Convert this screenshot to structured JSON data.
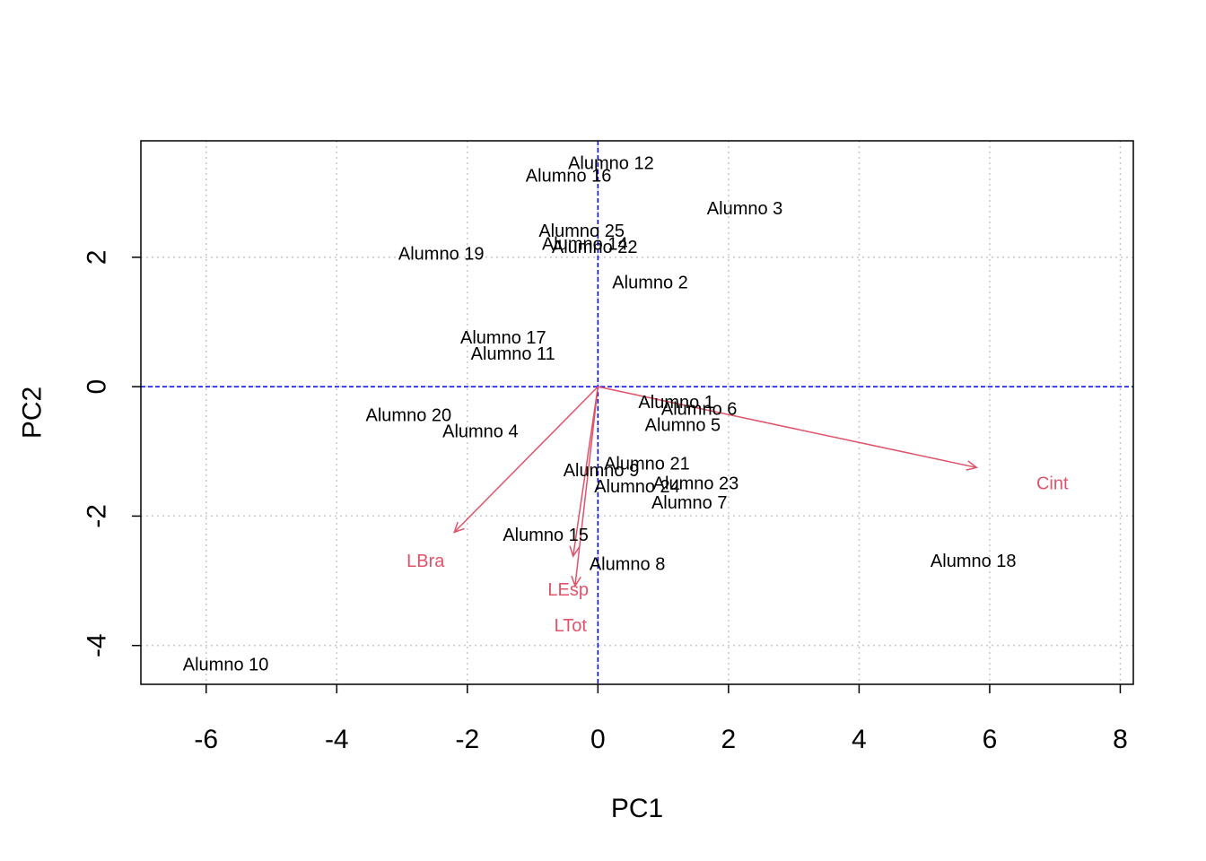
{
  "chart_data": {
    "type": "scatter",
    "subtype": "biplot",
    "title": "",
    "xlabel": "PC1",
    "ylabel": "PC2",
    "xlim": [
      -7,
      8.2
    ],
    "ylim": [
      -4.6,
      3.8
    ],
    "xticks": [
      -6,
      -4,
      -2,
      0,
      2,
      4,
      6,
      8
    ],
    "yticks": [
      -4,
      -2,
      0,
      2
    ],
    "grid": true,
    "reference_lines": {
      "x": 0,
      "y": 0,
      "color": "#0000FF",
      "style": "dashed"
    },
    "points": [
      {
        "label": "Alumno 12",
        "x": 0.2,
        "y": 3.45
      },
      {
        "label": "Alumno 16",
        "x": -0.45,
        "y": 3.25
      },
      {
        "label": "Alumno 3",
        "x": 2.25,
        "y": 2.75
      },
      {
        "label": "Alumno 25",
        "x": -0.25,
        "y": 2.4
      },
      {
        "label": "Alumno 14",
        "x": -0.2,
        "y": 2.2
      },
      {
        "label": "Alumno 22",
        "x": -0.05,
        "y": 2.15
      },
      {
        "label": "Alumno 19",
        "x": -2.4,
        "y": 2.05
      },
      {
        "label": "Alumno 2",
        "x": 0.8,
        "y": 1.6
      },
      {
        "label": "Alumno 17",
        "x": -1.45,
        "y": 0.75
      },
      {
        "label": "Alumno 11",
        "x": -1.3,
        "y": 0.5
      },
      {
        "label": "Alumno 1",
        "x": 1.2,
        "y": -0.25
      },
      {
        "label": "Alumno 6",
        "x": 1.55,
        "y": -0.35
      },
      {
        "label": "Alumno 5",
        "x": 1.3,
        "y": -0.6
      },
      {
        "label": "Alumno 20",
        "x": -2.9,
        "y": -0.45
      },
      {
        "label": "Alumno 4",
        "x": -1.8,
        "y": -0.7
      },
      {
        "label": "Alumno 21",
        "x": 0.75,
        "y": -1.2
      },
      {
        "label": "Alumno 9",
        "x": 0.05,
        "y": -1.3
      },
      {
        "label": "Alumno 23",
        "x": 1.5,
        "y": -1.5
      },
      {
        "label": "Alumno 24",
        "x": 0.6,
        "y": -1.55
      },
      {
        "label": "Alumno 7",
        "x": 1.4,
        "y": -1.8
      },
      {
        "label": "Alumno 15",
        "x": -0.8,
        "y": -2.3
      },
      {
        "label": "Alumno 8",
        "x": 0.45,
        "y": -2.75
      },
      {
        "label": "Alumno 18",
        "x": 5.75,
        "y": -2.7
      },
      {
        "label": "Alumno 10",
        "x": -5.7,
        "y": -4.3
      }
    ],
    "loadings": [
      {
        "name": "Cint",
        "x": 5.8,
        "y": -1.25
      },
      {
        "name": "LBra",
        "x": -2.2,
        "y": -2.25
      },
      {
        "name": "LEsp",
        "x": -0.38,
        "y": -2.62
      },
      {
        "name": "LTot",
        "x": -0.35,
        "y": -3.08
      }
    ],
    "colors": {
      "points": "#000000",
      "loadings": "#DF536B",
      "refline": "#0000FF",
      "grid": "#C8C8C8"
    }
  }
}
